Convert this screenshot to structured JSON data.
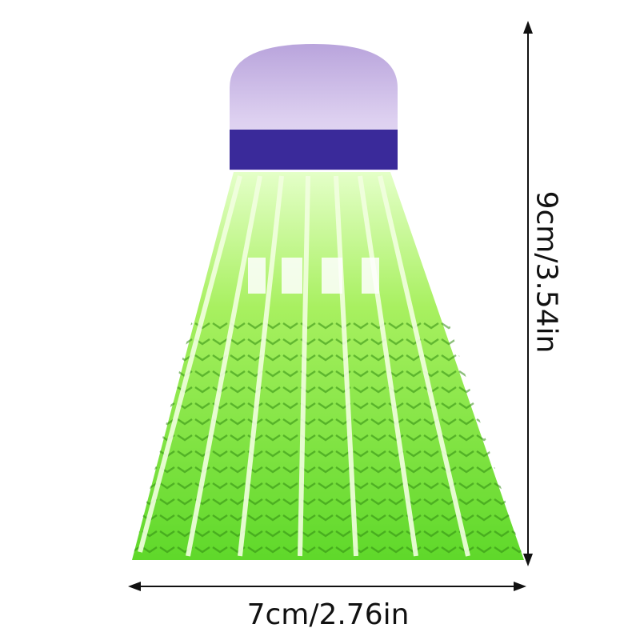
{
  "product": "glowing-shuttlecock",
  "dimensions": {
    "height_label": "9cm/3.54in",
    "width_label": "7cm/2.76in"
  },
  "colors": {
    "cork": "#c9b8e6",
    "band": "#3a2a9a",
    "skirt": "#7ee83a",
    "skirt_glow": "#d8ffb0"
  }
}
